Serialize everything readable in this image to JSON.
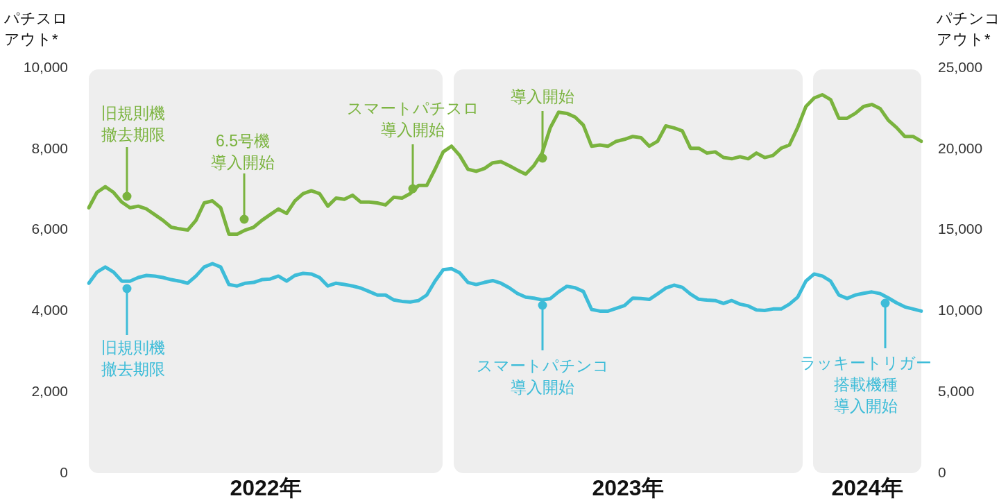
{
  "chart_data": {
    "type": "line",
    "ylabel": "パチスロアウト*",
    "y2label": "パチンコアウト*",
    "categories": [
      null,
      null,
      null,
      null,
      null,
      null,
      null,
      null,
      null,
      null,
      null,
      null,
      null,
      null,
      null,
      null,
      null,
      null,
      null,
      null,
      null,
      null,
      null,
      null,
      null,
      null,
      null,
      null,
      null,
      null,
      null,
      null,
      null,
      null,
      null,
      null,
      null,
      null,
      null,
      null,
      null,
      null,
      null,
      null,
      null,
      null,
      null,
      null,
      null,
      null,
      null,
      null,
      null,
      null,
      null,
      null,
      null,
      null,
      null,
      null,
      null,
      null,
      null,
      null,
      null,
      null,
      null,
      null,
      null,
      null,
      null,
      null,
      null,
      null,
      null,
      null,
      null,
      null,
      null,
      null,
      null,
      null,
      null,
      null,
      null,
      null,
      null,
      null,
      null,
      null,
      null,
      null,
      null,
      null,
      null,
      null,
      null,
      null,
      null,
      null,
      null,
      null
    ],
    "ylim": [
      0,
      10000
    ],
    "yticks": [
      0,
      {
        "value": 2000,
        "label": "2,000"
      },
      {
        "value": 4000,
        "label": "4,000"
      },
      {
        "value": 6000,
        "label": "6,000"
      },
      {
        "value": 8000,
        "label": "8,000"
      },
      {
        "value": 10000,
        "label": "10,000"
      }
    ],
    "y2lim": [
      0,
      25000
    ],
    "y2ticks": [
      0,
      {
        "value": 5000,
        "label": "5,000"
      },
      {
        "value": 10000,
        "label": "10,000"
      },
      {
        "value": 15000,
        "label": "15,000"
      },
      {
        "value": 20000,
        "label": "20,000"
      },
      {
        "value": 25000,
        "label": "25,000"
      }
    ],
    "tick_labels": "y",
    "grid": false,
    "legend": false,
    "marker": "none",
    "line_style": "solid",
    "series": [
      {
        "color": "#7ab33e",
        "values": [
          6550,
          6930,
          7070,
          6930,
          6690,
          6550,
          6590,
          6520,
          6380,
          6240,
          6070,
          6030,
          6000,
          6240,
          6670,
          6720,
          6550,
          5900,
          5900,
          6000,
          6070,
          6240,
          6380,
          6520,
          6410,
          6720,
          6900,
          6970,
          6900,
          6590,
          6790,
          6760,
          6860,
          6690,
          6690,
          6670,
          6620,
          6810,
          6790,
          6900,
          7100,
          7100,
          7500,
          7930,
          8070,
          7840,
          7500,
          7450,
          7520,
          7660,
          7690,
          7590,
          7480,
          7380,
          7590,
          7900,
          8530,
          8910,
          8880,
          8790,
          8590,
          8070,
          8100,
          8070,
          8190,
          8240,
          8310,
          8280,
          8070,
          8190,
          8570,
          8520,
          8450,
          8020,
          8020,
          7900,
          7930,
          7790,
          7760,
          7810,
          7760,
          7900,
          7790,
          7840,
          8020,
          8100,
          8530,
          9050,
          9260,
          9340,
          9220,
          8760,
          8760,
          8880,
          9050,
          9100,
          9000,
          8710,
          8530,
          8310,
          8310,
          8190
        ]
      },
      {
        "color": "#3dbcd8",
        "axis": "y2",
        "values": [
          11720,
          12410,
          12720,
          12410,
          11850,
          11850,
          12070,
          12200,
          12160,
          12070,
          11940,
          11850,
          11720,
          12160,
          12720,
          12930,
          12720,
          11640,
          11550,
          11720,
          11770,
          11940,
          11980,
          12160,
          11850,
          12200,
          12330,
          12290,
          12070,
          11550,
          11720,
          11640,
          11550,
          11420,
          11210,
          10990,
          10990,
          10690,
          10600,
          10560,
          10650,
          10990,
          11850,
          12550,
          12620,
          12360,
          11770,
          11640,
          11770,
          11880,
          11720,
          11440,
          11090,
          10860,
          10800,
          10690,
          10770,
          11190,
          11530,
          11440,
          11210,
          10100,
          10000,
          10000,
          10170,
          10340,
          10800,
          10780,
          10720,
          11060,
          11420,
          11600,
          11470,
          11050,
          10730,
          10680,
          10650,
          10470,
          10650,
          10430,
          10320,
          10070,
          10040,
          10130,
          10130,
          10430,
          10860,
          11850,
          12290,
          12160,
          11850,
          10990,
          10780,
          10990,
          11100,
          11180,
          11080,
          10810,
          10510,
          10260,
          10130,
          10000
        ]
      }
    ],
    "annotations": [
      "旧規則機撤去期限",
      "6.5号機導入開始",
      "スマートパチスロ導入開始",
      "導入開始",
      "旧規則機撤去期限",
      "スマートパチンコ導入開始",
      "ラッキートリガー搭載機種導入開始",
      "2022年",
      "2023年",
      "2024年"
    ]
  }
}
